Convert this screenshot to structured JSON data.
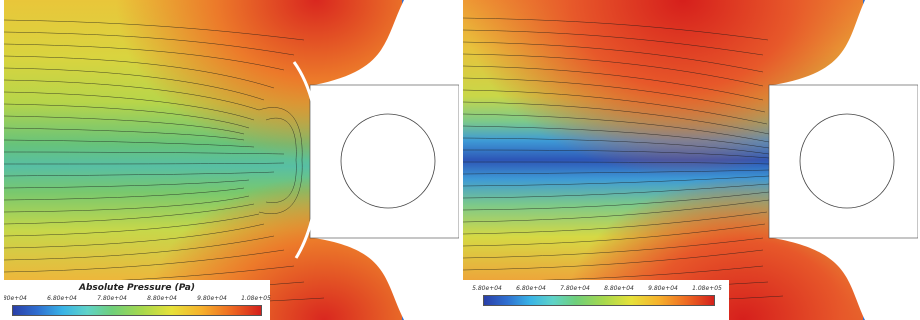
{
  "legend": {
    "title": "Absolute Pressure (Pa)",
    "ticks": [
      "5.80e+04",
      "6.80e+04",
      "7.80e+04",
      "8.80e+04",
      "9.80e+04",
      "1.08e+05"
    ]
  },
  "colors": {
    "low": "#2a3fa8",
    "mid": "#6fcf7a",
    "high": "#d4201c"
  }
}
